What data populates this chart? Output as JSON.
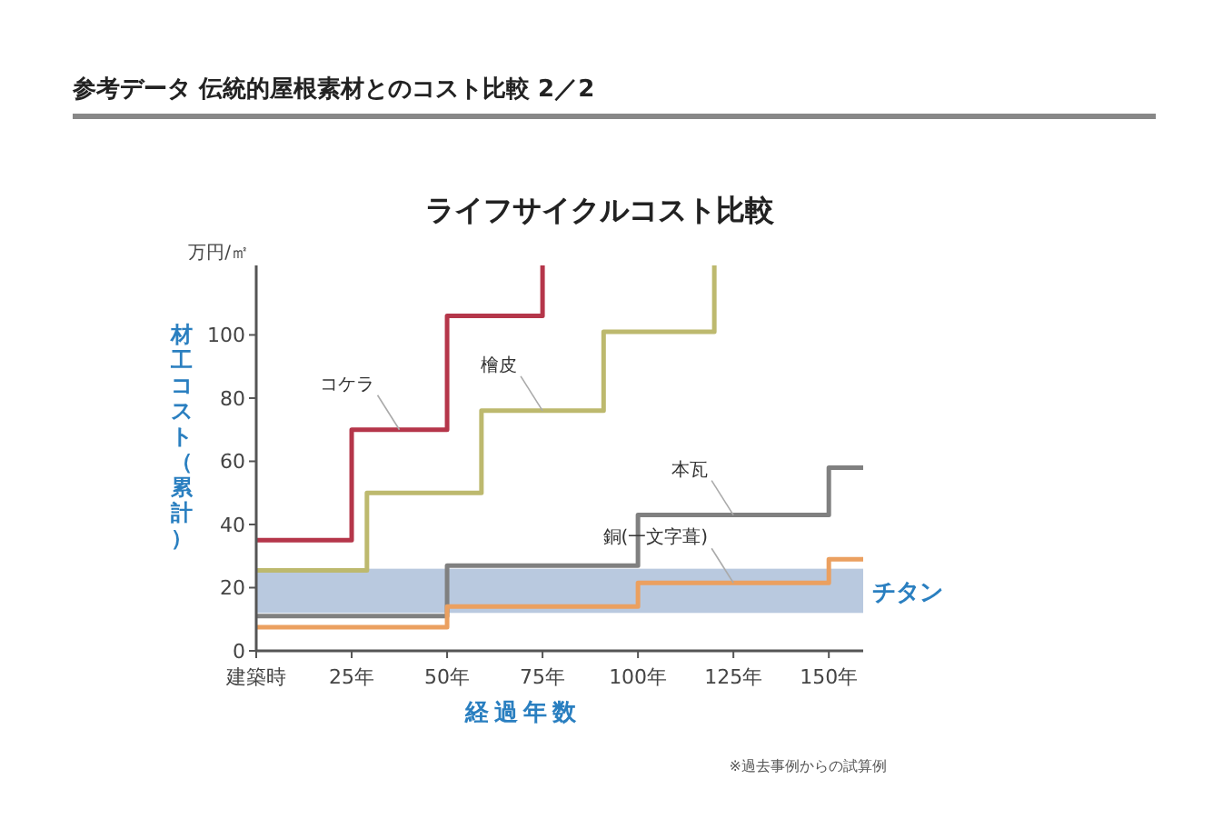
{
  "chart_data": {
    "type": "step",
    "title": "参考データ 伝統的屋根素材とのコスト比較 2／2",
    "subtitle": "ライフサイクルコスト比較",
    "xlabel": "経過年数",
    "ylabel": "材工コスト（累計）",
    "annotations": [
      "万円/㎡",
      "※過去事例からの試算例"
    ],
    "xlim": [
      0,
      159
    ],
    "ylim": [
      0,
      122
    ],
    "xticks": [
      {
        "value": 0,
        "label": "建築時"
      },
      {
        "value": 25,
        "label": "25年"
      },
      {
        "value": 50,
        "label": "50年"
      },
      {
        "value": 75,
        "label": "75年"
      },
      {
        "value": 100,
        "label": "100年"
      },
      {
        "value": 125,
        "label": "125年"
      },
      {
        "value": 150,
        "label": "150年"
      }
    ],
    "yticks": [
      0,
      20,
      40,
      60,
      80,
      100
    ],
    "bands": [
      {
        "axis": "y",
        "from": 12,
        "to": 26,
        "label": "チタン",
        "color": "#b9c9df"
      }
    ],
    "series": [
      {
        "name": "コケラ",
        "color": "#b5364a",
        "x": [
          0,
          25,
          50,
          75
        ],
        "values": [
          35,
          70,
          106,
          122
        ]
      },
      {
        "name": "檜皮",
        "color": "#bdb96e",
        "x": [
          0,
          29,
          59,
          91,
          120
        ],
        "values": [
          25.5,
          50,
          76,
          101,
          122
        ]
      },
      {
        "name": "本瓦",
        "color": "#808080",
        "x": [
          0,
          50,
          100,
          150,
          159
        ],
        "values": [
          11,
          27,
          43,
          58,
          58
        ]
      },
      {
        "name": "銅(一文字葺)",
        "color": "#eba060",
        "x": [
          0,
          50,
          100,
          150,
          159
        ],
        "values": [
          7.5,
          14,
          21.5,
          29,
          29
        ]
      }
    ]
  }
}
